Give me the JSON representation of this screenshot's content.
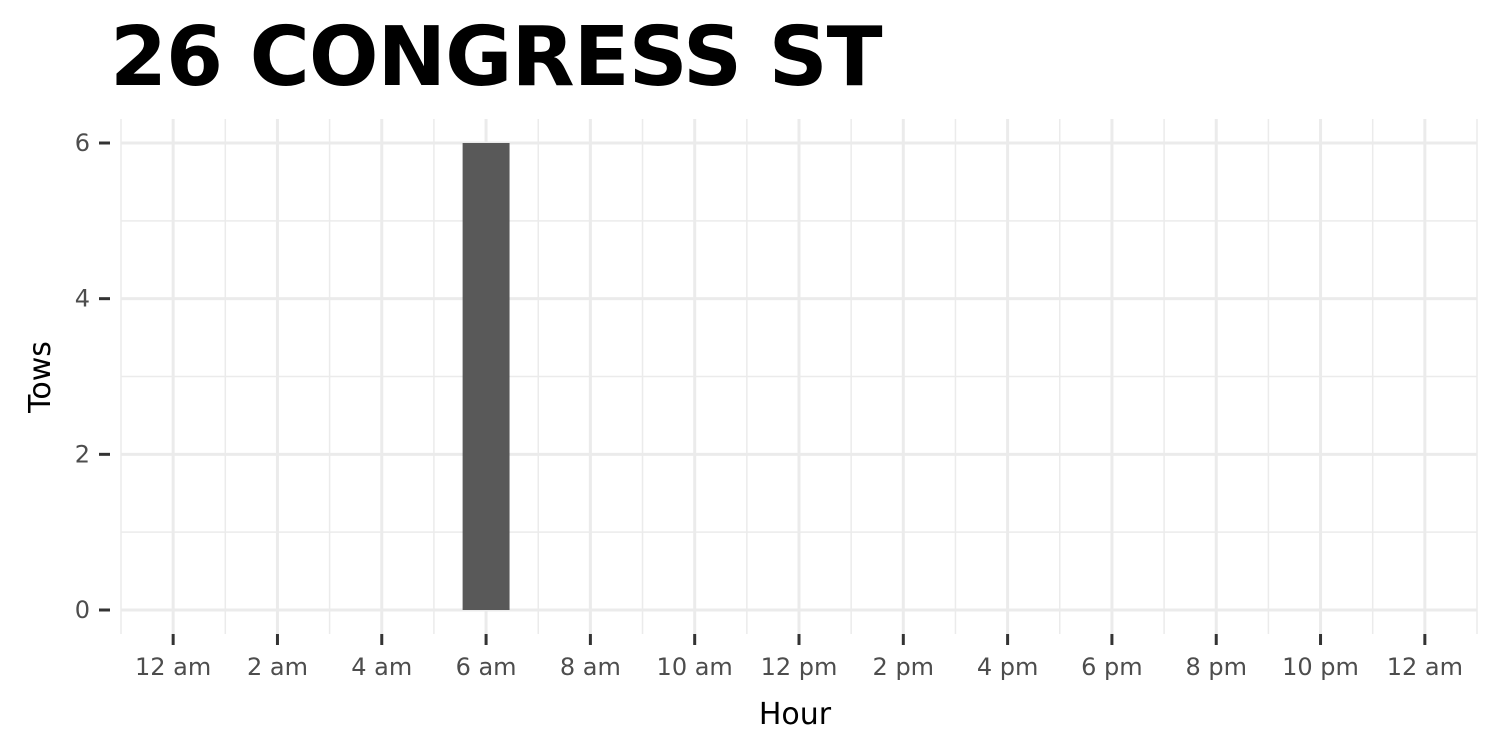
{
  "chart_data": {
    "type": "bar",
    "title": "26 CONGRESS ST",
    "xlabel": "Hour",
    "ylabel": "Tows",
    "x_tick_labels": [
      "12 am",
      "2 am",
      "4 am",
      "6 am",
      "8 am",
      "10 am",
      "12 pm",
      "2 pm",
      "4 pm",
      "6 pm",
      "8 pm",
      "10 pm",
      "12 am"
    ],
    "x_tick_positions": [
      0,
      2,
      4,
      6,
      8,
      10,
      12,
      14,
      16,
      18,
      20,
      22,
      24
    ],
    "xlim": [
      -1,
      25
    ],
    "y_ticks": [
      0,
      2,
      4,
      6
    ],
    "ylim": [
      0,
      6
    ],
    "grid": true,
    "bar_color": "#595959",
    "grid_color": "#ebebeb",
    "bars": [
      {
        "hour": 6,
        "value": 6
      }
    ]
  }
}
